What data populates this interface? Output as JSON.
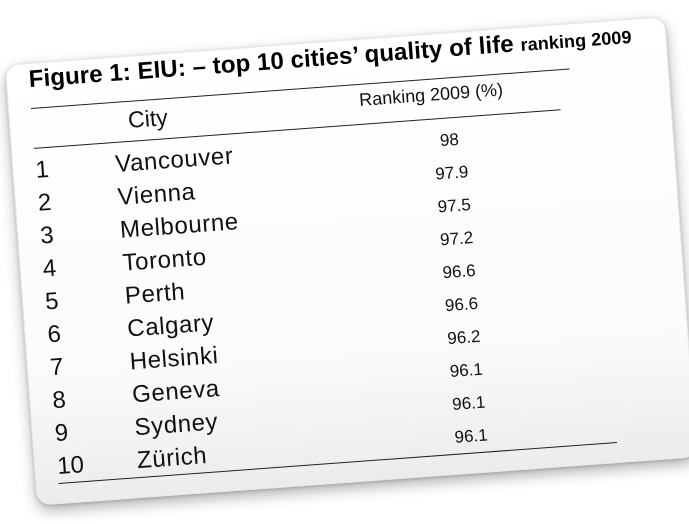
{
  "figure": {
    "title": "Figure 1: EIU: – top 10 cities’ quality of life",
    "title_tail": "ranking 2009",
    "columns": {
      "city": "City",
      "ranking": "Ranking 2009 (%)"
    },
    "rows": [
      {
        "rank": "1",
        "city": "Vancouver",
        "value": "98"
      },
      {
        "rank": "2",
        "city": "Vienna",
        "value": "97.9"
      },
      {
        "rank": "3",
        "city": "Melbourne",
        "value": "97.5"
      },
      {
        "rank": "4",
        "city": "Toronto",
        "value": "97.2"
      },
      {
        "rank": "5",
        "city": "Perth",
        "value": "96.6"
      },
      {
        "rank": "6",
        "city": "Calgary",
        "value": "96.6"
      },
      {
        "rank": "7",
        "city": "Helsinki",
        "value": "96.2"
      },
      {
        "rank": "8",
        "city": "Geneva",
        "value": "96.1"
      },
      {
        "rank": "9",
        "city": "Sydney",
        "value": "96.1"
      },
      {
        "rank": "10",
        "city": "Zürich",
        "value": "96.1"
      }
    ]
  },
  "colors": {
    "background": "#ffffff",
    "card": "#ffffff",
    "text": "#111111",
    "rules": "#222222"
  }
}
